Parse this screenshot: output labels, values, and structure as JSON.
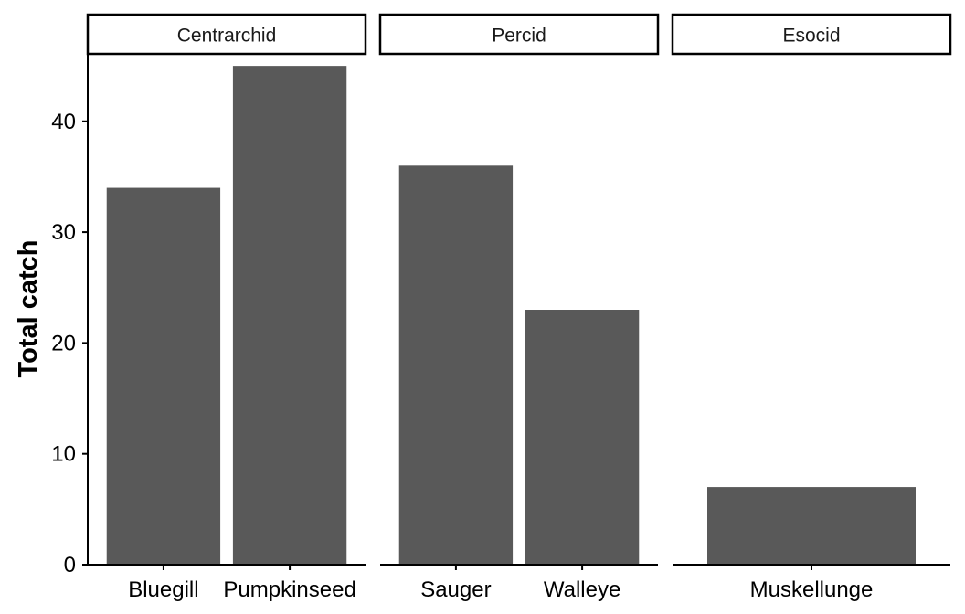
{
  "chart_data": {
    "type": "bar",
    "title": "",
    "xlabel": "",
    "ylabel": "Total catch",
    "ylim": [
      0,
      46
    ],
    "yticks": [
      0,
      10,
      20,
      30,
      40
    ],
    "bar_color": "#595959",
    "grid": false,
    "facets": [
      {
        "label": "Centrarchid",
        "categories": [
          "Bluegill",
          "Pumpkinseed"
        ],
        "values": [
          34,
          45
        ]
      },
      {
        "label": "Percid",
        "categories": [
          "Sauger",
          "Walleye"
        ],
        "values": [
          36,
          23
        ]
      },
      {
        "label": "Esocid",
        "categories": [
          "Muskellunge"
        ],
        "values": [
          7
        ]
      }
    ]
  }
}
